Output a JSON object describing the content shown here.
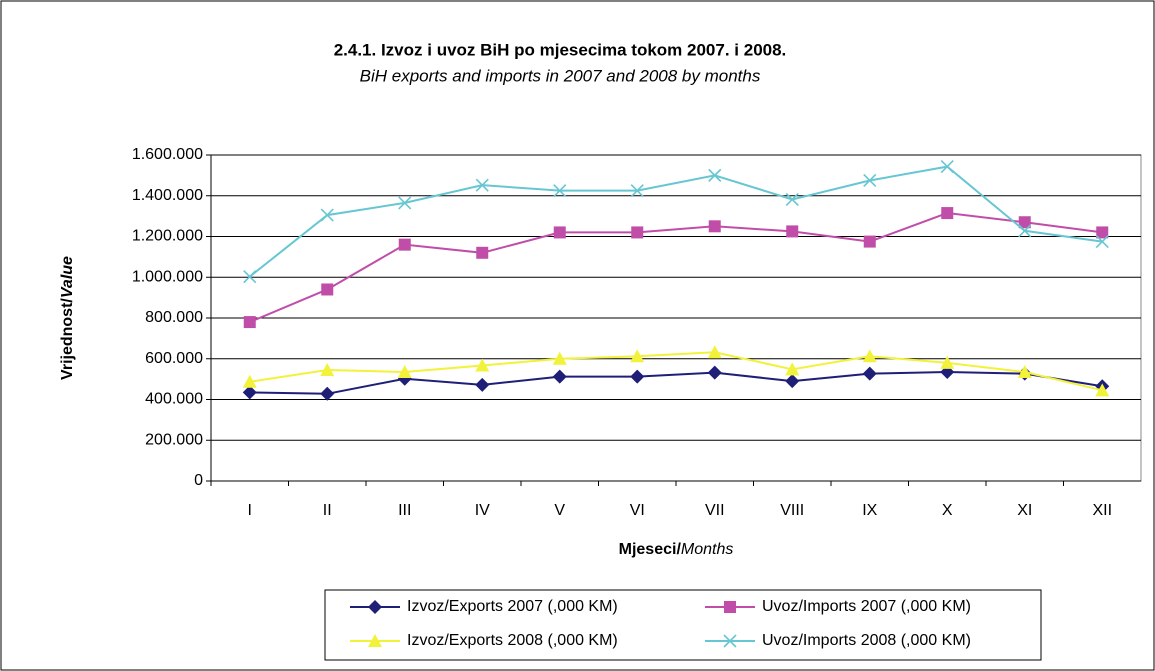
{
  "chart_data": {
    "type": "line",
    "title": "2.4.1. Izvoz i uvoz BiH po mjesecima tokom 2007. i 2008.",
    "subtitle": "BiH exports and imports in 2007 and 2008 by months",
    "x_label": {
      "main": "Mjeseci/",
      "italic": "Months"
    },
    "y_label": {
      "main": "Vrijednost/",
      "italic": "Value"
    },
    "categories": [
      "I",
      "II",
      "III",
      "IV",
      "V",
      "VI",
      "VII",
      "VIII",
      "IX",
      "X",
      "XI",
      "XII"
    ],
    "ylim": [
      0,
      1600000
    ],
    "yticks": [
      0,
      {
        "value": 200000,
        "label": "200.000"
      },
      {
        "value": 400000,
        "label": "400.000"
      },
      {
        "value": 600000,
        "label": "600.000"
      },
      {
        "value": 800000,
        "label": "800.000"
      },
      {
        "value": 1000000,
        "label": "1.000.000"
      },
      {
        "value": 1200000,
        "label": "1.200.000"
      },
      {
        "value": 1400000,
        "label": "1.400.000"
      },
      {
        "value": 1600000,
        "label": "1.600.000"
      }
    ],
    "grid": true,
    "series": [
      {
        "name": "Izvoz/Exports 2007 (,000 KM)",
        "color": "#1f1f78",
        "marker": "diamond",
        "values": [
          435000,
          428000,
          502000,
          472000,
          512000,
          512000,
          532000,
          490000,
          527000,
          535000,
          527000,
          465000
        ]
      },
      {
        "name": "Uvoz/Imports 2007 (,000 KM)",
        "color": "#c04ea8",
        "marker": "square",
        "values": [
          780000,
          940000,
          1160000,
          1120000,
          1220000,
          1220000,
          1250000,
          1225000,
          1175000,
          1315000,
          1270000,
          1220000
        ]
      },
      {
        "name": "Izvoz/Exports 2008 (,000 KM)",
        "color": "#f2f23a",
        "marker": "triangle",
        "values": [
          487000,
          545000,
          535000,
          567000,
          600000,
          612000,
          632000,
          548000,
          612000,
          580000,
          535000,
          445000
        ]
      },
      {
        "name": "Uvoz/Imports 2008 (,000 KM)",
        "color": "#66c6d2",
        "marker": "x",
        "values": [
          1003000,
          1305000,
          1365000,
          1452000,
          1425000,
          1425000,
          1500000,
          1382000,
          1475000,
          1543000,
          1228000,
          1175000
        ]
      }
    ]
  }
}
